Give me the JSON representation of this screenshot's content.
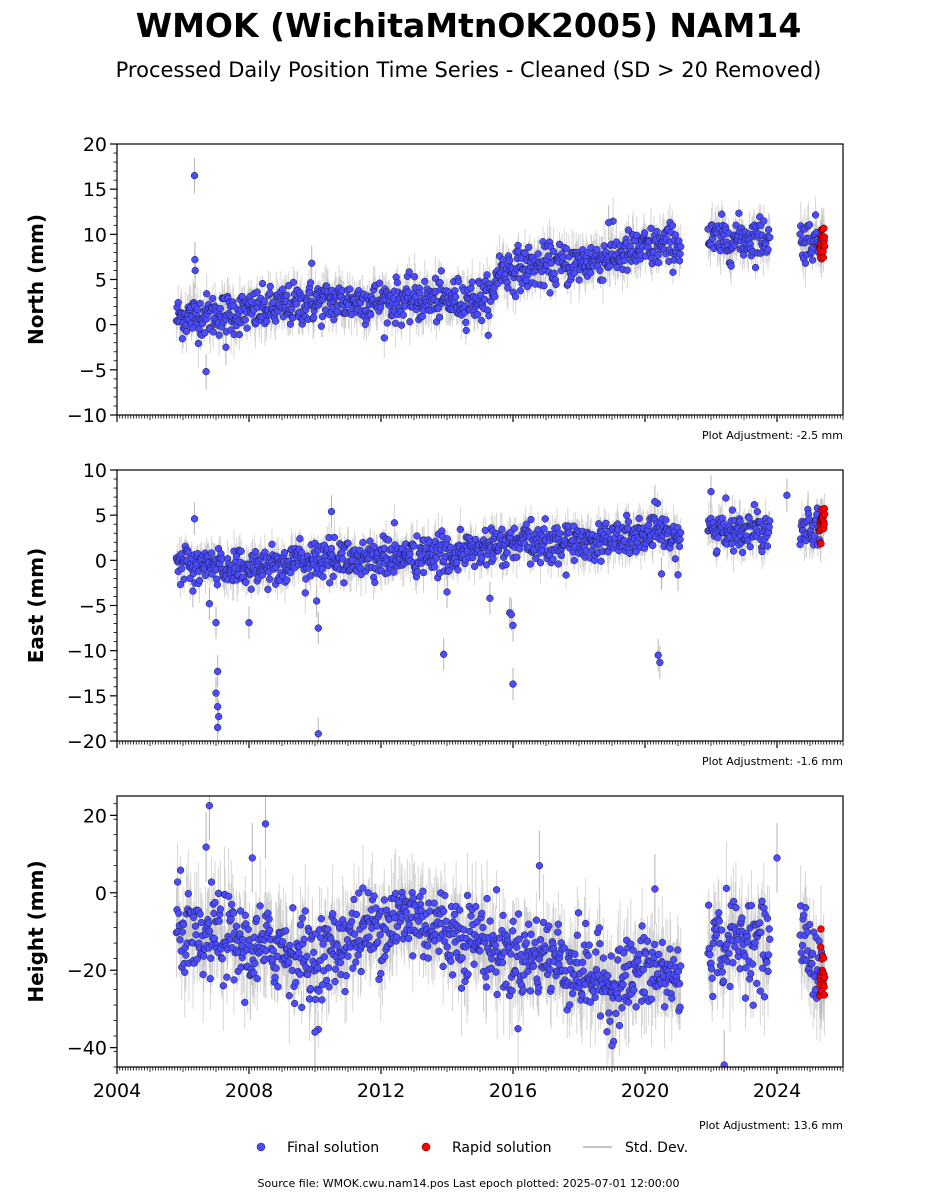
{
  "title": "WMOK (WichitaMtnOK2005) NAM14",
  "subtitle": "Processed Daily Position Time Series - Cleaned (SD > 20 Removed)",
  "source": "Source file: WMOK.cwu.nam14.pos  Last epoch plotted: 2025-07-01 12:00:00",
  "colors": {
    "final": "#4b4bff",
    "rapid": "#ff0000",
    "sd": "#b4b4b4"
  },
  "legend": {
    "final": "Final solution",
    "rapid": "Rapid solution",
    "sd": "Std. Dev."
  },
  "chart_data": [
    {
      "type": "scatter",
      "ylabel": "North (mm)",
      "ylim": [
        -10,
        20
      ],
      "yticks": [
        -10,
        -5,
        0,
        5,
        10,
        15,
        20
      ],
      "xlim": [
        2004,
        2026
      ],
      "xticks": [
        2004,
        2008,
        2012,
        2016,
        2020,
        2024
      ],
      "adjustment": "Plot Adjustment: -2.5 mm",
      "trend": [
        [
          2005.8,
          0.8
        ],
        [
          2008.0,
          1.4
        ],
        [
          2010.0,
          2.5
        ],
        [
          2012.0,
          2.6
        ],
        [
          2015.4,
          2.8
        ],
        [
          2015.5,
          6.0
        ],
        [
          2018.0,
          6.8
        ],
        [
          2019.5,
          8.0
        ],
        [
          2021.0,
          9.0
        ],
        [
          2023.5,
          9.7
        ],
        [
          2025.4,
          9.3
        ]
      ],
      "spread": 1.3,
      "outliers": [
        [
          2006.35,
          16.5
        ],
        [
          2006.36,
          7.2
        ],
        [
          2006.37,
          6.0
        ],
        [
          2006.7,
          -5.2
        ],
        [
          2007.3,
          -2.5
        ],
        [
          2009.9,
          6.8
        ],
        [
          2018.9,
          11.3
        ]
      ],
      "final_range": [
        2005.8,
        2025.35
      ],
      "rapid_range": [
        2025.3,
        2025.45
      ],
      "gaps": [
        [
          2021.1,
          2021.9
        ],
        [
          2023.8,
          2024.7
        ]
      ]
    },
    {
      "type": "scatter",
      "ylabel": "East (mm)",
      "ylim": [
        -20,
        10
      ],
      "yticks": [
        -20,
        -15,
        -10,
        -5,
        0,
        5,
        10
      ],
      "xlim": [
        2004,
        2026
      ],
      "xticks": [
        2004,
        2008,
        2012,
        2016,
        2020,
        2024
      ],
      "adjustment": "Plot Adjustment: -1.6 mm",
      "trend": [
        [
          2005.8,
          -0.5
        ],
        [
          2008.0,
          -0.8
        ],
        [
          2010.0,
          0.0
        ],
        [
          2012.0,
          0.3
        ],
        [
          2014.0,
          0.6
        ],
        [
          2016.0,
          1.8
        ],
        [
          2018.0,
          2.0
        ],
        [
          2021.0,
          3.0
        ],
        [
          2023.5,
          3.5
        ],
        [
          2025.4,
          4.0
        ]
      ],
      "spread": 1.2,
      "outliers": [
        [
          2006.35,
          4.6
        ],
        [
          2006.3,
          -3.4
        ],
        [
          2006.8,
          -4.8
        ],
        [
          2007.0,
          -6.9
        ],
        [
          2007.05,
          -12.3
        ],
        [
          2007.0,
          -14.7
        ],
        [
          2007.05,
          -16.2
        ],
        [
          2007.08,
          -17.3
        ],
        [
          2007.05,
          -18.5
        ],
        [
          2008.0,
          -6.9
        ],
        [
          2010.05,
          -4.5
        ],
        [
          2010.1,
          -7.5
        ],
        [
          2010.1,
          -19.2
        ],
        [
          2010.5,
          5.4
        ],
        [
          2011.0,
          1.9
        ],
        [
          2013.9,
          -10.4
        ],
        [
          2014.0,
          -3.5
        ],
        [
          2015.3,
          -4.2
        ],
        [
          2015.9,
          -5.8
        ],
        [
          2015.95,
          -6.0
        ],
        [
          2016.0,
          -7.2
        ],
        [
          2016.0,
          -13.7
        ],
        [
          2020.4,
          -10.5
        ],
        [
          2020.45,
          -11.3
        ],
        [
          2020.5,
          -1.5
        ],
        [
          2021.0,
          -1.6
        ],
        [
          2020.3,
          6.5
        ],
        [
          2022.0,
          7.6
        ],
        [
          2024.3,
          7.2
        ]
      ],
      "final_range": [
        2005.8,
        2025.35
      ],
      "rapid_range": [
        2025.3,
        2025.45
      ],
      "gaps": [
        [
          2021.1,
          2021.9
        ],
        [
          2023.8,
          2024.7
        ]
      ]
    },
    {
      "type": "scatter",
      "ylabel": "Height (mm)",
      "ylim": [
        -45,
        25
      ],
      "yticks": [
        -40,
        -20,
        0,
        20
      ],
      "xlim": [
        2004,
        2026
      ],
      "xticks": [
        2004,
        2008,
        2012,
        2016,
        2020,
        2024
      ],
      "xticklabels": [
        "2004",
        "2008",
        "2012",
        "2016",
        "2020",
        "2024"
      ],
      "adjustment": "Plot Adjustment: 13.6 mm",
      "trend": [
        [
          2005.8,
          -8.0
        ],
        [
          2006.5,
          -15.0
        ],
        [
          2007.0,
          -10.0
        ],
        [
          2008.0,
          -15.0
        ],
        [
          2009.0,
          -14.0
        ],
        [
          2010.0,
          -18.0
        ],
        [
          2011.0,
          -12.0
        ],
        [
          2012.0,
          -8.0
        ],
        [
          2013.0,
          -6.0
        ],
        [
          2014.0,
          -10.0
        ],
        [
          2015.0,
          -12.0
        ],
        [
          2016.0,
          -17.0
        ],
        [
          2017.0,
          -16.0
        ],
        [
          2018.0,
          -20.0
        ],
        [
          2019.0,
          -24.0
        ],
        [
          2020.0,
          -20.0
        ],
        [
          2021.0,
          -22.0
        ],
        [
          2022.0,
          -14.0
        ],
        [
          2023.0,
          -12.0
        ],
        [
          2023.7,
          -14.0
        ],
        [
          2024.7,
          -10.0
        ],
        [
          2025.4,
          -22.0
        ]
      ],
      "spread": 6.0,
      "outliers": [
        [
          2006.8,
          22.5
        ],
        [
          2006.7,
          11.8
        ],
        [
          2008.5,
          17.8
        ],
        [
          2008.1,
          9.0
        ],
        [
          2010.0,
          -36.0
        ],
        [
          2019.0,
          -39.5
        ],
        [
          2020.3,
          1.0
        ],
        [
          2022.4,
          -44.5
        ],
        [
          2024.0,
          9.0
        ],
        [
          2016.8,
          7.0
        ]
      ],
      "final_range": [
        2005.8,
        2025.35
      ],
      "rapid_range": [
        2025.3,
        2025.45
      ],
      "gaps": [
        [
          2021.1,
          2021.9
        ],
        [
          2023.8,
          2024.7
        ]
      ]
    }
  ]
}
